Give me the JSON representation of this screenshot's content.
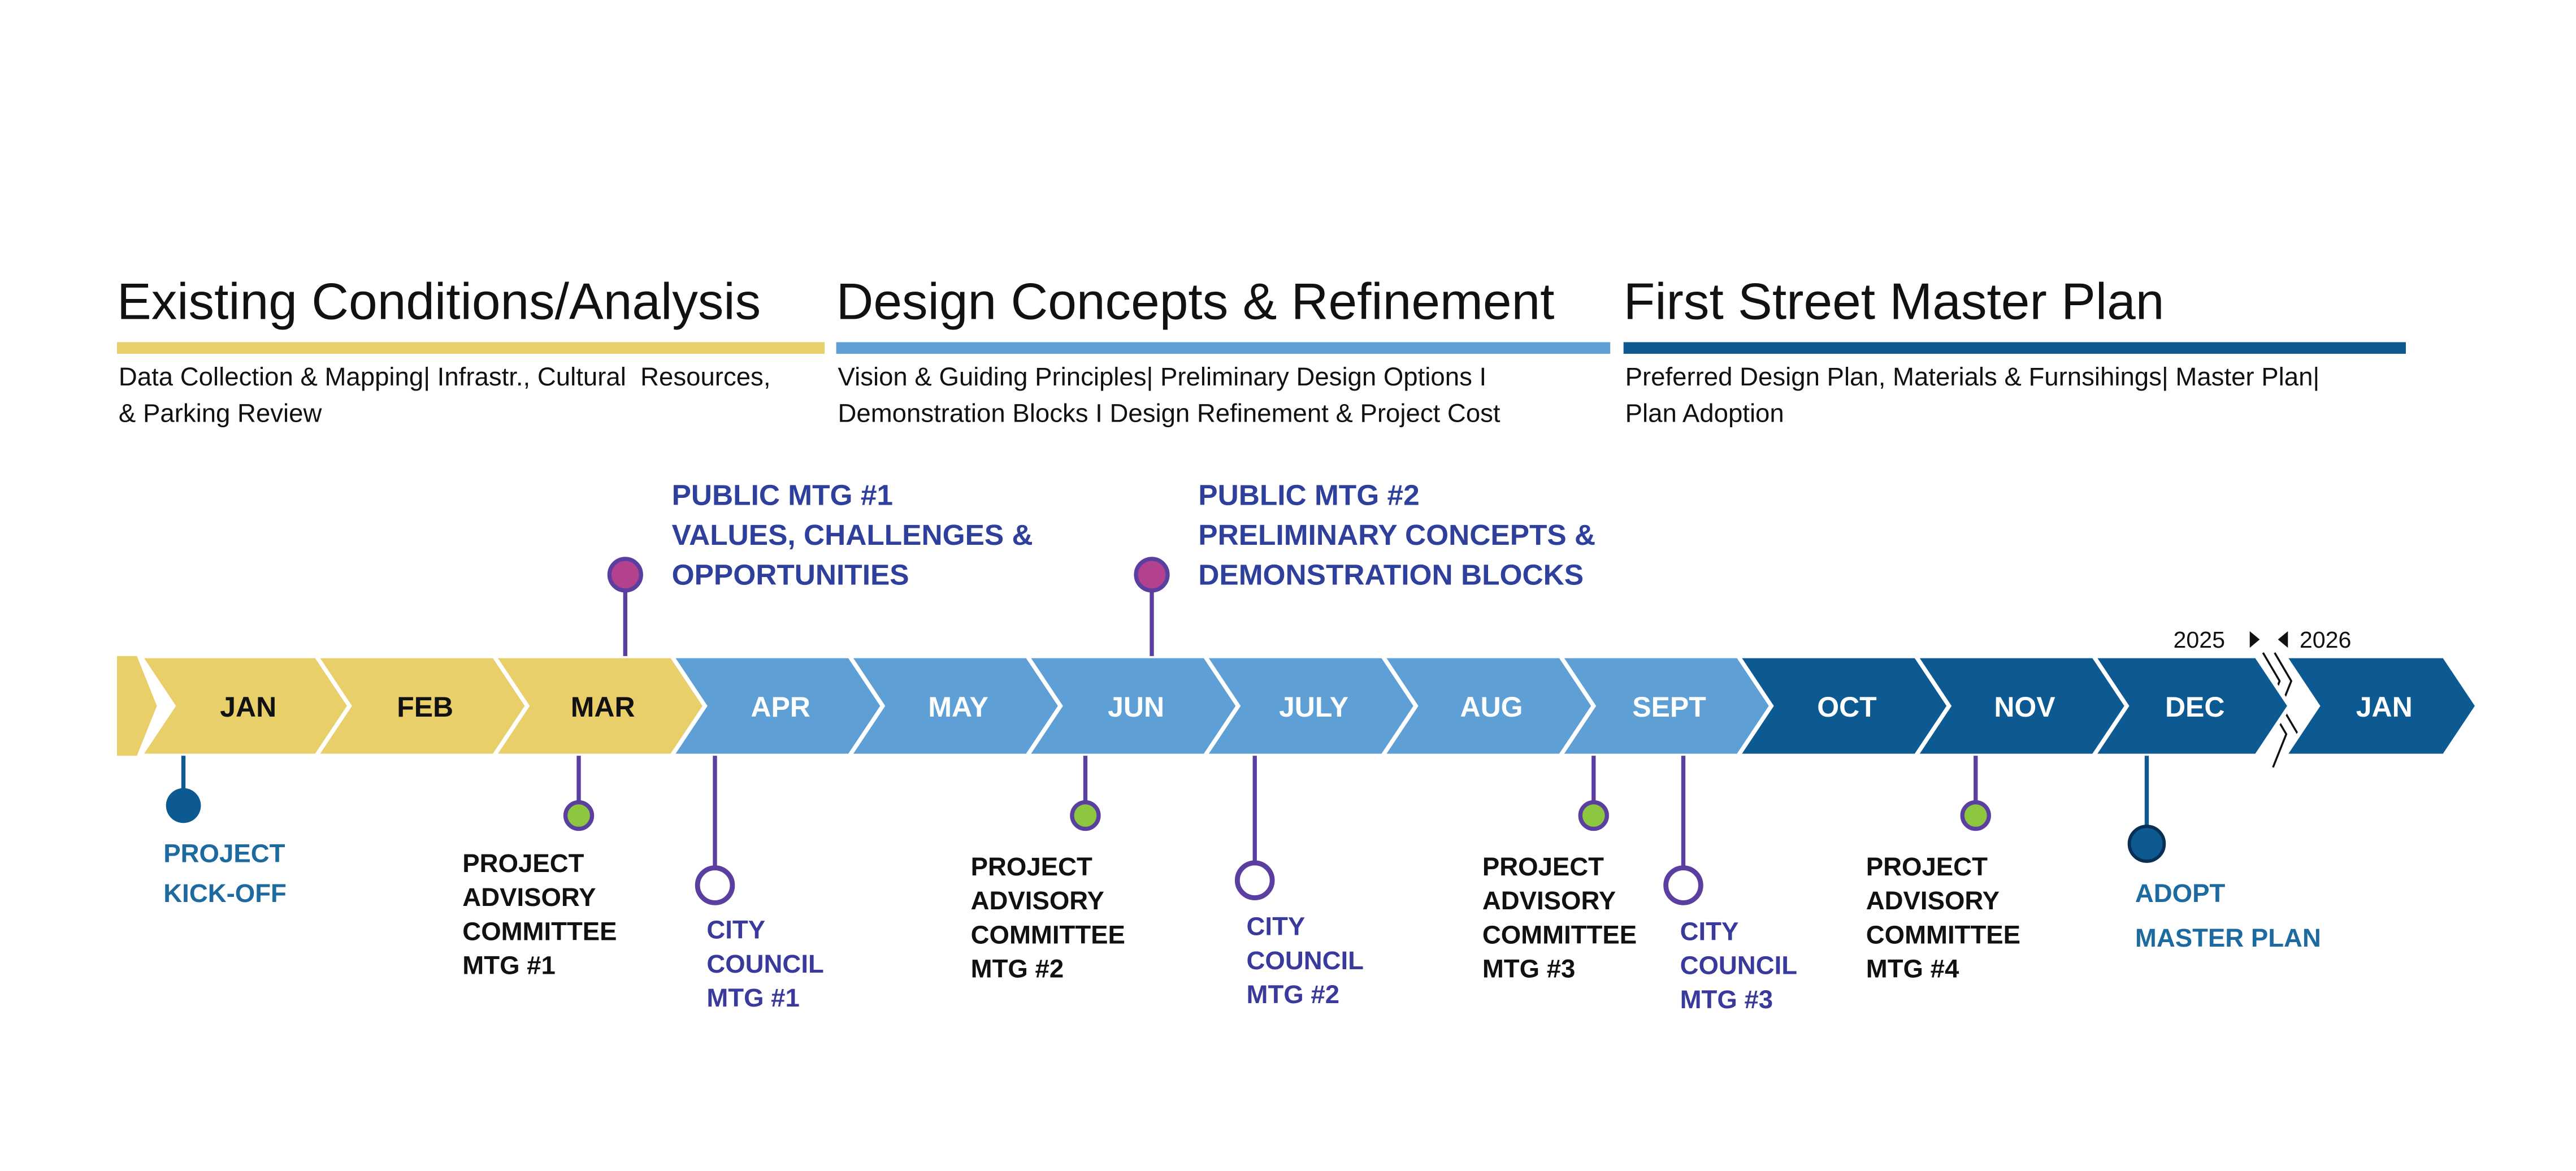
{
  "phases": [
    {
      "title": "Existing Conditions/Analysis",
      "description": [
        "Data Collection & Mapping| Infrastr., Cultural  Resources,",
        "& Parking Review"
      ]
    },
    {
      "title": "Design Concepts & Refinement",
      "description": [
        "Vision & Guiding Principles| Preliminary Design Options I",
        "Demonstration Blocks I Design Refinement & Project Cost"
      ]
    },
    {
      "title": "First Street Master Plan",
      "description": [
        "Preferred Design Plan, Materials & Furnsihings| Master Plan|",
        "Plan Adoption"
      ]
    }
  ],
  "months": [
    "JAN",
    "FEB",
    "MAR",
    "APR",
    "MAY",
    "JUN",
    "JULY",
    "AUG",
    "SEPT",
    "OCT",
    "NOV",
    "DEC",
    "JAN"
  ],
  "years": [
    "2025",
    "2026"
  ],
  "public_meetings": [
    {
      "label": [
        "PUBLIC MTG #1",
        "VALUES, CHALLENGES &",
        "OPPORTUNITIES"
      ]
    },
    {
      "label": [
        "PUBLIC MTG #2",
        "PRELIMINARY CONCEPTS &",
        "DEMONSTRATION BLOCKS"
      ]
    }
  ],
  "milestones": [
    {
      "label": [
        "PROJECT",
        "KICK-OFF"
      ]
    },
    {
      "label": [
        "PROJECT",
        "ADVISORY",
        "COMMITTEE",
        "MTG #1"
      ]
    },
    {
      "label": [
        "CITY",
        "COUNCIL",
        "MTG #1"
      ]
    },
    {
      "label": [
        "PROJECT",
        "ADVISORY",
        "COMMITTEE",
        "MTG #2"
      ]
    },
    {
      "label": [
        "CITY",
        "COUNCIL",
        "MTG #2"
      ]
    },
    {
      "label": [
        "PROJECT",
        "ADVISORY",
        "COMMITTEE",
        "MTG #3"
      ]
    },
    {
      "label": [
        "CITY",
        "COUNCIL",
        "MTG #3"
      ]
    },
    {
      "label": [
        "PROJECT",
        "ADVISORY",
        "COMMITTEE",
        "MTG #4"
      ]
    },
    {
      "label": [
        "ADOPT",
        "MASTER PLAN"
      ]
    }
  ]
}
